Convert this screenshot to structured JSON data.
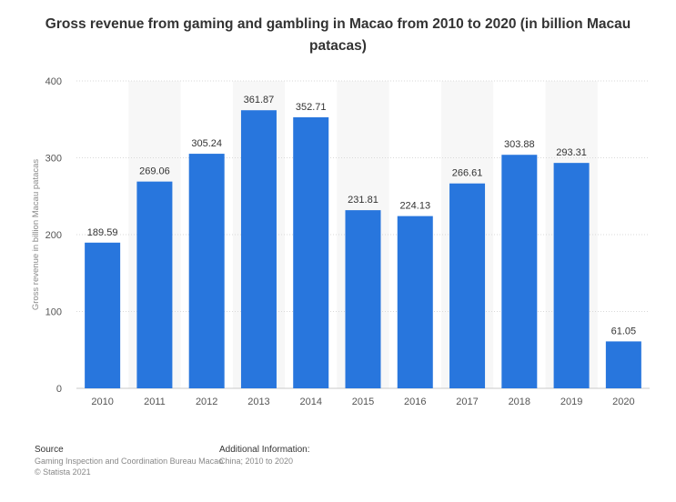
{
  "title": "Gross revenue from gaming and gambling in Macao from 2010 to 2020 (in billion Macau patacas)",
  "chart_data": {
    "type": "bar",
    "title": "Gross revenue from gaming and gambling in Macao from 2010 to 2020 (in billion Macau patacas)",
    "xlabel": "",
    "ylabel": "Gross revenue in billion Macau patacas",
    "categories": [
      "2010",
      "2011",
      "2012",
      "2013",
      "2014",
      "2015",
      "2016",
      "2017",
      "2018",
      "2019",
      "2020"
    ],
    "values": [
      189.59,
      269.06,
      305.24,
      361.87,
      352.71,
      231.81,
      224.13,
      266.61,
      303.88,
      293.31,
      61.05
    ],
    "value_labels": [
      "189.59",
      "269.06",
      "305.24",
      "361.87",
      "352.71",
      "231.81",
      "224.13",
      "266.61",
      "303.88",
      "293.31",
      "61.05"
    ],
    "ylim": [
      0,
      400
    ],
    "yticks": [
      0,
      100,
      200,
      300,
      400
    ],
    "grid": true,
    "bar_color": "#2876dd"
  },
  "footer": {
    "source_heading": "Source",
    "source_lines": [
      "Gaming Inspection and Coordination Bureau Macao",
      "© Statista 2021"
    ],
    "info_heading": "Additional Information:",
    "info_lines": [
      "China; 2010 to 2020"
    ]
  }
}
